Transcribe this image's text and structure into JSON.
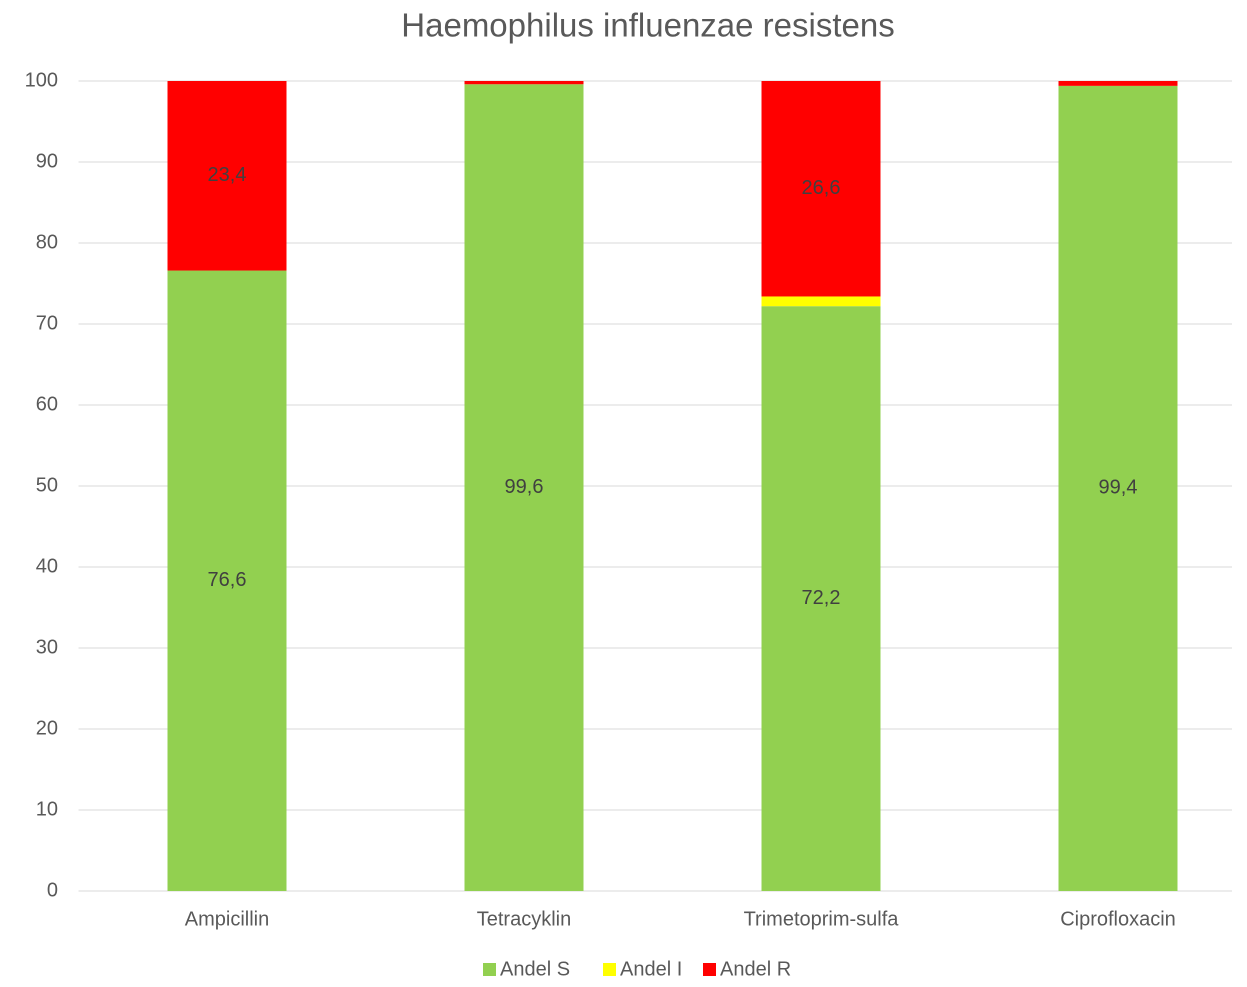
{
  "chart_data": {
    "type": "stacked_bar",
    "title": "Haemophilus influenzae resistens",
    "categories": [
      "Ampicillin",
      "Tetracyklin",
      "Trimetoprim-sulfa",
      "Ciprofloxacin"
    ],
    "series": [
      {
        "name": "Andel S",
        "color": "#92d050",
        "values": [
          76.6,
          99.6,
          72.2,
          99.4
        ],
        "value_labels": [
          "76,6",
          "99,6",
          "72,2",
          "99,4"
        ]
      },
      {
        "name": "Andel I",
        "color": "#ffff00",
        "values": [
          0,
          0,
          1.2,
          0
        ],
        "value_labels": [
          null,
          null,
          null,
          null
        ]
      },
      {
        "name": "Andel R",
        "color": "#ff0000",
        "values": [
          23.4,
          0.4,
          26.6,
          0.6
        ],
        "value_labels": [
          "23,4",
          null,
          "26,6",
          null
        ]
      }
    ],
    "ylim": [
      0,
      100
    ],
    "yticks": [
      0,
      10,
      20,
      30,
      40,
      50,
      60,
      70,
      80,
      90,
      100
    ],
    "grid": true,
    "legend": "bottom"
  }
}
